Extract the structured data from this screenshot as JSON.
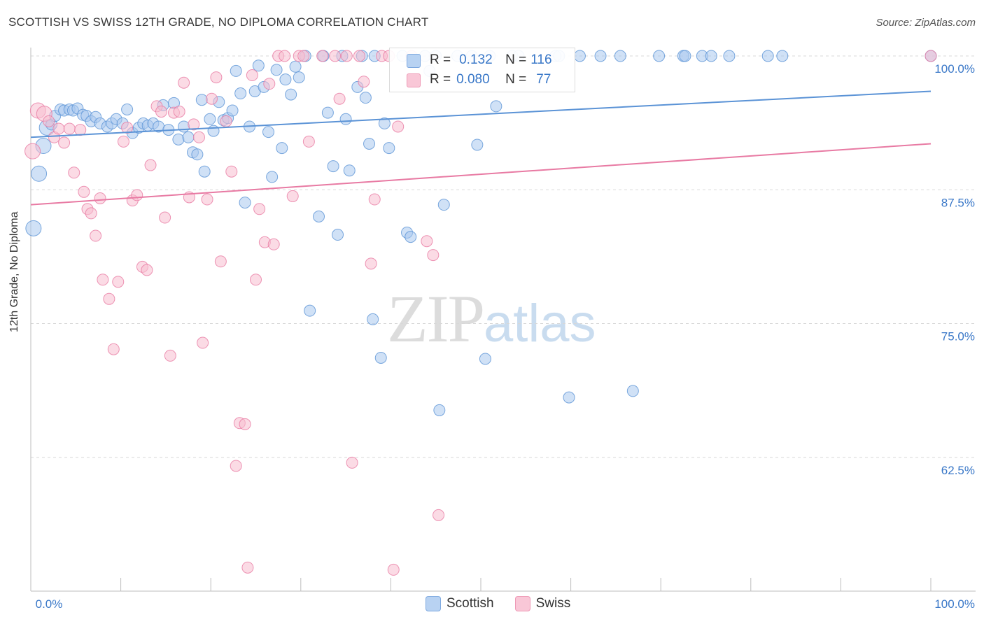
{
  "title": "SCOTTISH VS SWISS 12TH GRADE, NO DIPLOMA CORRELATION CHART",
  "source": "Source: ZipAtlas.com",
  "watermark": {
    "zip": "ZIP",
    "atlas": "atlas"
  },
  "legend": {
    "r_label": "R =",
    "n_label": "N =",
    "rows": [
      {
        "name": "Scottish",
        "r": "0.132",
        "n": "116",
        "color": "#8fb6e8"
      },
      {
        "name": "Swiss",
        "r": "0.080",
        "n": "77",
        "color": "#f4a9c1"
      }
    ]
  },
  "bottom_legend": [
    "Scottish",
    "Swiss"
  ],
  "chart_data": {
    "type": "scatter",
    "xlabel": "",
    "ylabel": "12th Grade, No Diploma",
    "xlim": [
      0,
      100
    ],
    "ylim": [
      50,
      100
    ],
    "x_tick_labels": [
      "0.0%",
      "100.0%"
    ],
    "y_ticks": [
      62.5,
      75.0,
      87.5,
      100.0
    ],
    "y_tick_labels": [
      "62.5%",
      "75.0%",
      "87.5%",
      "100.0%"
    ],
    "grid": true,
    "series": [
      {
        "name": "Scottish",
        "color": "#5b93d6",
        "fill": "#a9c8ef",
        "trend": {
          "y_at_0": 92.4,
          "y_at_100": 96.7
        },
        "points": [
          [
            0.3,
            83.9
          ],
          [
            0.9,
            89.0
          ],
          [
            1.4,
            91.6
          ],
          [
            1.8,
            93.3
          ],
          [
            2.3,
            93.6
          ],
          [
            2.7,
            94.4
          ],
          [
            3.3,
            95.0
          ],
          [
            3.7,
            94.9
          ],
          [
            4.3,
            95.0
          ],
          [
            4.7,
            94.9
          ],
          [
            5.2,
            95.1
          ],
          [
            5.8,
            94.5
          ],
          [
            6.2,
            94.4
          ],
          [
            6.7,
            93.9
          ],
          [
            7.2,
            94.3
          ],
          [
            7.7,
            93.7
          ],
          [
            8.5,
            93.4
          ],
          [
            9.0,
            93.7
          ],
          [
            9.5,
            94.1
          ],
          [
            10.2,
            93.7
          ],
          [
            10.7,
            95.0
          ],
          [
            11.3,
            92.8
          ],
          [
            12.0,
            93.3
          ],
          [
            12.5,
            93.7
          ],
          [
            13.0,
            93.5
          ],
          [
            13.6,
            93.7
          ],
          [
            14.2,
            93.4
          ],
          [
            14.7,
            95.4
          ],
          [
            15.3,
            93.1
          ],
          [
            15.9,
            95.6
          ],
          [
            16.4,
            92.2
          ],
          [
            17.0,
            93.4
          ],
          [
            17.5,
            92.4
          ],
          [
            18.0,
            91.0
          ],
          [
            18.5,
            90.8
          ],
          [
            19.0,
            95.9
          ],
          [
            19.3,
            89.2
          ],
          [
            19.9,
            94.1
          ],
          [
            20.3,
            93.0
          ],
          [
            20.9,
            95.7
          ],
          [
            21.4,
            94.0
          ],
          [
            21.9,
            94.2
          ],
          [
            22.4,
            94.9
          ],
          [
            22.8,
            98.6
          ],
          [
            23.3,
            96.5
          ],
          [
            23.8,
            86.3
          ],
          [
            24.3,
            93.4
          ],
          [
            24.9,
            96.7
          ],
          [
            25.3,
            99.1
          ],
          [
            25.9,
            97.1
          ],
          [
            26.4,
            92.9
          ],
          [
            26.8,
            88.7
          ],
          [
            27.3,
            98.7
          ],
          [
            27.9,
            91.4
          ],
          [
            28.3,
            97.8
          ],
          [
            28.9,
            96.4
          ],
          [
            29.4,
            99.0
          ],
          [
            29.8,
            98.0
          ],
          [
            30.5,
            100.0
          ],
          [
            31.0,
            76.2
          ],
          [
            32.0,
            85.0
          ],
          [
            32.5,
            100.0
          ],
          [
            33.0,
            94.7
          ],
          [
            33.6,
            89.7
          ],
          [
            34.1,
            83.3
          ],
          [
            34.6,
            100.0
          ],
          [
            35.0,
            94.1
          ],
          [
            35.4,
            89.3
          ],
          [
            36.3,
            97.1
          ],
          [
            36.8,
            100.0
          ],
          [
            37.2,
            96.1
          ],
          [
            37.6,
            91.8
          ],
          [
            38.2,
            100.0
          ],
          [
            38.0,
            75.4
          ],
          [
            38.9,
            71.8
          ],
          [
            39.3,
            93.7
          ],
          [
            39.8,
            91.4
          ],
          [
            41.3,
            100.0
          ],
          [
            41.8,
            83.5
          ],
          [
            42.2,
            83.1
          ],
          [
            43.8,
            100.0
          ],
          [
            44.3,
            98.6
          ],
          [
            45.0,
            100.0
          ],
          [
            45.4,
            66.9
          ],
          [
            45.9,
            86.1
          ],
          [
            47.4,
            100.0
          ],
          [
            49.0,
            100.0
          ],
          [
            49.6,
            91.7
          ],
          [
            50.5,
            71.7
          ],
          [
            51.0,
            100.0
          ],
          [
            51.7,
            95.3
          ],
          [
            53.5,
            100.0
          ],
          [
            54.2,
            100.0
          ],
          [
            58.3,
            100.0
          ],
          [
            58.7,
            100.0
          ],
          [
            59.8,
            68.1
          ],
          [
            61.0,
            100.0
          ],
          [
            63.3,
            100.0
          ],
          [
            65.5,
            100.0
          ],
          [
            66.9,
            68.7
          ],
          [
            69.8,
            100.0
          ],
          [
            72.5,
            100.0
          ],
          [
            72.7,
            100.0
          ],
          [
            74.6,
            100.0
          ],
          [
            75.6,
            100.0
          ],
          [
            77.6,
            100.0
          ],
          [
            81.9,
            100.0
          ],
          [
            83.5,
            100.0
          ],
          [
            100.0,
            100.0
          ]
        ]
      },
      {
        "name": "Swiss",
        "color": "#e87aa3",
        "fill": "#f7bdd0",
        "trend": {
          "y_at_0": 86.1,
          "y_at_100": 91.8
        },
        "points": [
          [
            0.2,
            91.1
          ],
          [
            0.8,
            94.9
          ],
          [
            1.5,
            94.6
          ],
          [
            2.0,
            93.9
          ],
          [
            2.6,
            92.4
          ],
          [
            3.1,
            93.2
          ],
          [
            3.7,
            91.9
          ],
          [
            4.3,
            93.2
          ],
          [
            4.8,
            89.1
          ],
          [
            5.5,
            93.1
          ],
          [
            5.9,
            87.3
          ],
          [
            6.3,
            85.7
          ],
          [
            6.7,
            85.3
          ],
          [
            7.2,
            83.2
          ],
          [
            7.7,
            86.7
          ],
          [
            8.0,
            79.1
          ],
          [
            8.7,
            77.3
          ],
          [
            9.2,
            72.6
          ],
          [
            9.7,
            78.9
          ],
          [
            10.3,
            92.0
          ],
          [
            10.7,
            93.3
          ],
          [
            11.3,
            86.5
          ],
          [
            11.8,
            87.0
          ],
          [
            12.4,
            80.3
          ],
          [
            12.9,
            80.0
          ],
          [
            13.3,
            89.8
          ],
          [
            14.0,
            95.3
          ],
          [
            14.5,
            94.8
          ],
          [
            14.9,
            84.9
          ],
          [
            15.5,
            72.0
          ],
          [
            15.9,
            94.7
          ],
          [
            16.5,
            94.8
          ],
          [
            17.0,
            97.5
          ],
          [
            17.6,
            86.8
          ],
          [
            18.1,
            93.6
          ],
          [
            18.7,
            92.4
          ],
          [
            19.1,
            73.2
          ],
          [
            19.6,
            86.6
          ],
          [
            20.1,
            96.0
          ],
          [
            20.6,
            98.0
          ],
          [
            21.1,
            80.8
          ],
          [
            21.7,
            93.9
          ],
          [
            22.3,
            89.2
          ],
          [
            22.8,
            61.7
          ],
          [
            23.2,
            65.7
          ],
          [
            23.8,
            65.6
          ],
          [
            24.1,
            52.2
          ],
          [
            24.6,
            98.2
          ],
          [
            25.0,
            79.1
          ],
          [
            25.4,
            85.7
          ],
          [
            26.0,
            82.6
          ],
          [
            26.5,
            97.4
          ],
          [
            27.0,
            82.4
          ],
          [
            27.5,
            100.0
          ],
          [
            28.2,
            100.0
          ],
          [
            29.1,
            86.9
          ],
          [
            29.8,
            100.0
          ],
          [
            30.3,
            100.0
          ],
          [
            30.9,
            92.0
          ],
          [
            32.4,
            100.0
          ],
          [
            33.8,
            100.0
          ],
          [
            34.3,
            96.0
          ],
          [
            35.1,
            100.0
          ],
          [
            35.7,
            62.0
          ],
          [
            36.5,
            100.0
          ],
          [
            37.0,
            97.6
          ],
          [
            37.8,
            80.6
          ],
          [
            38.2,
            86.6
          ],
          [
            39.0,
            100.0
          ],
          [
            39.8,
            100.0
          ],
          [
            40.3,
            52.0
          ],
          [
            40.8,
            93.4
          ],
          [
            42.3,
            100.0
          ],
          [
            44.0,
            82.7
          ],
          [
            44.7,
            81.4
          ],
          [
            45.3,
            57.1
          ],
          [
            100.0,
            100.0
          ]
        ]
      }
    ]
  }
}
